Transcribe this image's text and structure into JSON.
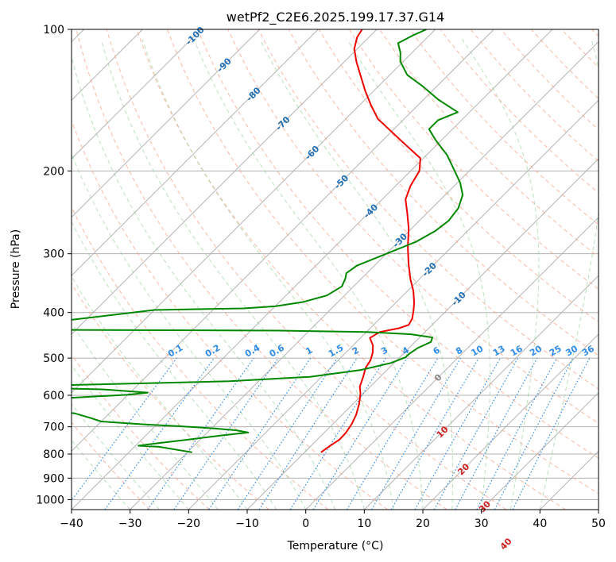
{
  "chart_data": {
    "type": "line",
    "title": "wetPf2_C2E6.2025.199.17.37.G14",
    "xlabel": "Temperature (°C)",
    "ylabel": "Pressure (hPa)",
    "xlim": [
      -40,
      50
    ],
    "ylim": [
      1050,
      100
    ],
    "y_scale": "log",
    "grid": true,
    "x_ticks": [
      "−40",
      "−30",
      "−20",
      "−10",
      "0",
      "10",
      "20",
      "30",
      "40",
      "50"
    ],
    "y_ticks": [
      "100",
      "200",
      "300",
      "400",
      "500",
      "600",
      "700",
      "800",
      "900",
      "1000"
    ],
    "isotherm_labels": [
      "-100",
      "-90",
      "-80",
      "-70",
      "-60",
      "-50",
      "-40",
      "-30",
      "-20",
      "-10",
      "0",
      "10",
      "20",
      "30",
      "40"
    ],
    "mixing_ratio_labels": [
      "0.1",
      "0.2",
      "0.4",
      "0.6",
      "1",
      "1.5",
      "2",
      "3",
      "4",
      "6",
      "8",
      "10",
      "13",
      "16",
      "20",
      "25",
      "30",
      "36"
    ],
    "series": [
      {
        "color": "#ee0000",
        "points": [
          [
            -7.2,
            793
          ],
          [
            -6.8,
            770
          ],
          [
            -6.2,
            745
          ],
          [
            -6.3,
            720
          ],
          [
            -6.8,
            690
          ],
          [
            -7.6,
            660
          ],
          [
            -9.0,
            625
          ],
          [
            -10.5,
            595
          ],
          [
            -11.8,
            575
          ],
          [
            -12.8,
            550
          ],
          [
            -14.0,
            525
          ],
          [
            -14.5,
            505
          ],
          [
            -15.4,
            487
          ],
          [
            -16.6,
            470
          ],
          [
            -18.4,
            453
          ],
          [
            -17.7,
            440
          ],
          [
            -15.1,
            432
          ],
          [
            -14.0,
            425
          ],
          [
            -14.5,
            412
          ],
          [
            -15.5,
            398
          ],
          [
            -16.8,
            382
          ],
          [
            -19.0,
            360
          ],
          [
            -21.5,
            340
          ],
          [
            -24.5,
            315
          ],
          [
            -27.5,
            290
          ],
          [
            -30.5,
            265
          ],
          [
            -33.5,
            245
          ],
          [
            -36.0,
            230
          ],
          [
            -37.5,
            215
          ],
          [
            -38.5,
            200
          ],
          [
            -40.5,
            188
          ],
          [
            -44.5,
            178
          ],
          [
            -50.0,
            165
          ],
          [
            -54.5,
            155
          ],
          [
            -58.0,
            145
          ],
          [
            -61.5,
            135
          ],
          [
            -65.0,
            125
          ],
          [
            -68.0,
            117
          ],
          [
            -70.5,
            110
          ],
          [
            -72.0,
            104
          ],
          [
            -72.5,
            100
          ]
        ]
      },
      {
        "color": "#008800",
        "points": [
          [
            -29.2,
            793
          ],
          [
            -35.8,
            772
          ],
          [
            -39.5,
            768
          ],
          [
            -37.0,
            760
          ],
          [
            -32.0,
            745
          ],
          [
            -27.0,
            730
          ],
          [
            -23.0,
            720
          ],
          [
            -25.5,
            712
          ],
          [
            -30.0,
            705
          ],
          [
            -36.0,
            698
          ],
          [
            -42.0,
            692
          ],
          [
            -50.0,
            682
          ],
          [
            -52.5,
            670
          ],
          [
            -56.0,
            655
          ],
          [
            -62.0,
            647
          ],
          [
            -72.0,
            641
          ],
          [
            -78.0,
            640
          ],
          [
            -72.0,
            625
          ],
          [
            -62.0,
            610
          ],
          [
            -50.0,
            598
          ],
          [
            -47.0,
            592
          ],
          [
            -55.0,
            583
          ],
          [
            -68.0,
            578
          ],
          [
            -80.0,
            576
          ],
          [
            -60.0,
            570
          ],
          [
            -35.0,
            560
          ],
          [
            -22.0,
            548
          ],
          [
            -14.5,
            530
          ],
          [
            -10.5,
            512
          ],
          [
            -9.0,
            498
          ],
          [
            -9.0,
            490
          ],
          [
            -8.5,
            476
          ],
          [
            -7.3,
            462
          ],
          [
            -7.8,
            452
          ],
          [
            -12.0,
            445
          ],
          [
            -20.0,
            440
          ],
          [
            -35.0,
            437
          ],
          [
            -60.0,
            436
          ],
          [
            -85.0,
            435
          ],
          [
            -60.0,
            395
          ],
          [
            -45.0,
            392
          ],
          [
            -40.0,
            388
          ],
          [
            -36.0,
            380
          ],
          [
            -33.0,
            368
          ],
          [
            -32.0,
            352
          ],
          [
            -32.8,
            338
          ],
          [
            -33.5,
            330
          ],
          [
            -33.0,
            318
          ],
          [
            -30.0,
            300
          ],
          [
            -27.0,
            283
          ],
          [
            -25.5,
            268
          ],
          [
            -25.0,
            255
          ],
          [
            -25.5,
            240
          ],
          [
            -27.0,
            225
          ],
          [
            -29.5,
            212
          ],
          [
            -33.0,
            198
          ],
          [
            -36.5,
            185
          ],
          [
            -41.0,
            172
          ],
          [
            -44.0,
            163
          ],
          [
            -44.0,
            156
          ],
          [
            -42.0,
            150
          ],
          [
            -47.5,
            141
          ],
          [
            -52.5,
            132
          ],
          [
            -57.0,
            125
          ],
          [
            -60.5,
            117
          ],
          [
            -62.0,
            112
          ],
          [
            -64.0,
            107
          ],
          [
            -62.8,
            103
          ],
          [
            -61.5,
            100
          ]
        ]
      }
    ]
  }
}
